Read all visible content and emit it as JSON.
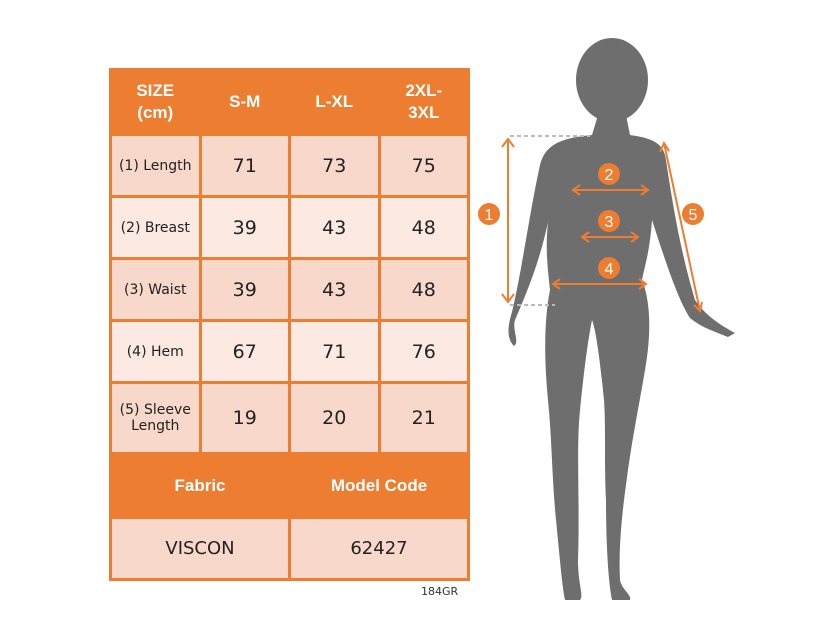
{
  "table": {
    "headers": [
      "SIZE\n(cm)",
      "S-M",
      "L-XL",
      "2XL-\n3XL"
    ],
    "header_lines": [
      [
        "SIZE",
        "(cm)"
      ],
      [
        "S-M"
      ],
      [
        "L-XL"
      ],
      [
        "2XL-",
        "3XL"
      ]
    ],
    "rows": [
      {
        "label": "(1) Length",
        "values": [
          "71",
          "73",
          "75"
        ]
      },
      {
        "label": "(2) Breast",
        "values": [
          "39",
          "43",
          "48"
        ]
      },
      {
        "label": "(3) Waist",
        "values": [
          "39",
          "43",
          "48"
        ]
      },
      {
        "label": "(4) Hem",
        "values": [
          "67",
          "71",
          "76"
        ]
      },
      {
        "label_lines": [
          "(5) Sleeve",
          "Length"
        ],
        "values": [
          "19",
          "20",
          "21"
        ]
      }
    ],
    "footer_headers": [
      "Fabric",
      "Model Code"
    ],
    "footer_values": [
      "VISCON",
      "62427"
    ]
  },
  "product_code": "184GR",
  "figure": {
    "markers": [
      "1",
      "2",
      "3",
      "4",
      "5"
    ]
  },
  "colors": {
    "accent": "#ED7D31",
    "cell_dark": "#F8D8CA",
    "cell_light": "#FBE9E2",
    "silhouette": "#6E6E6E"
  }
}
